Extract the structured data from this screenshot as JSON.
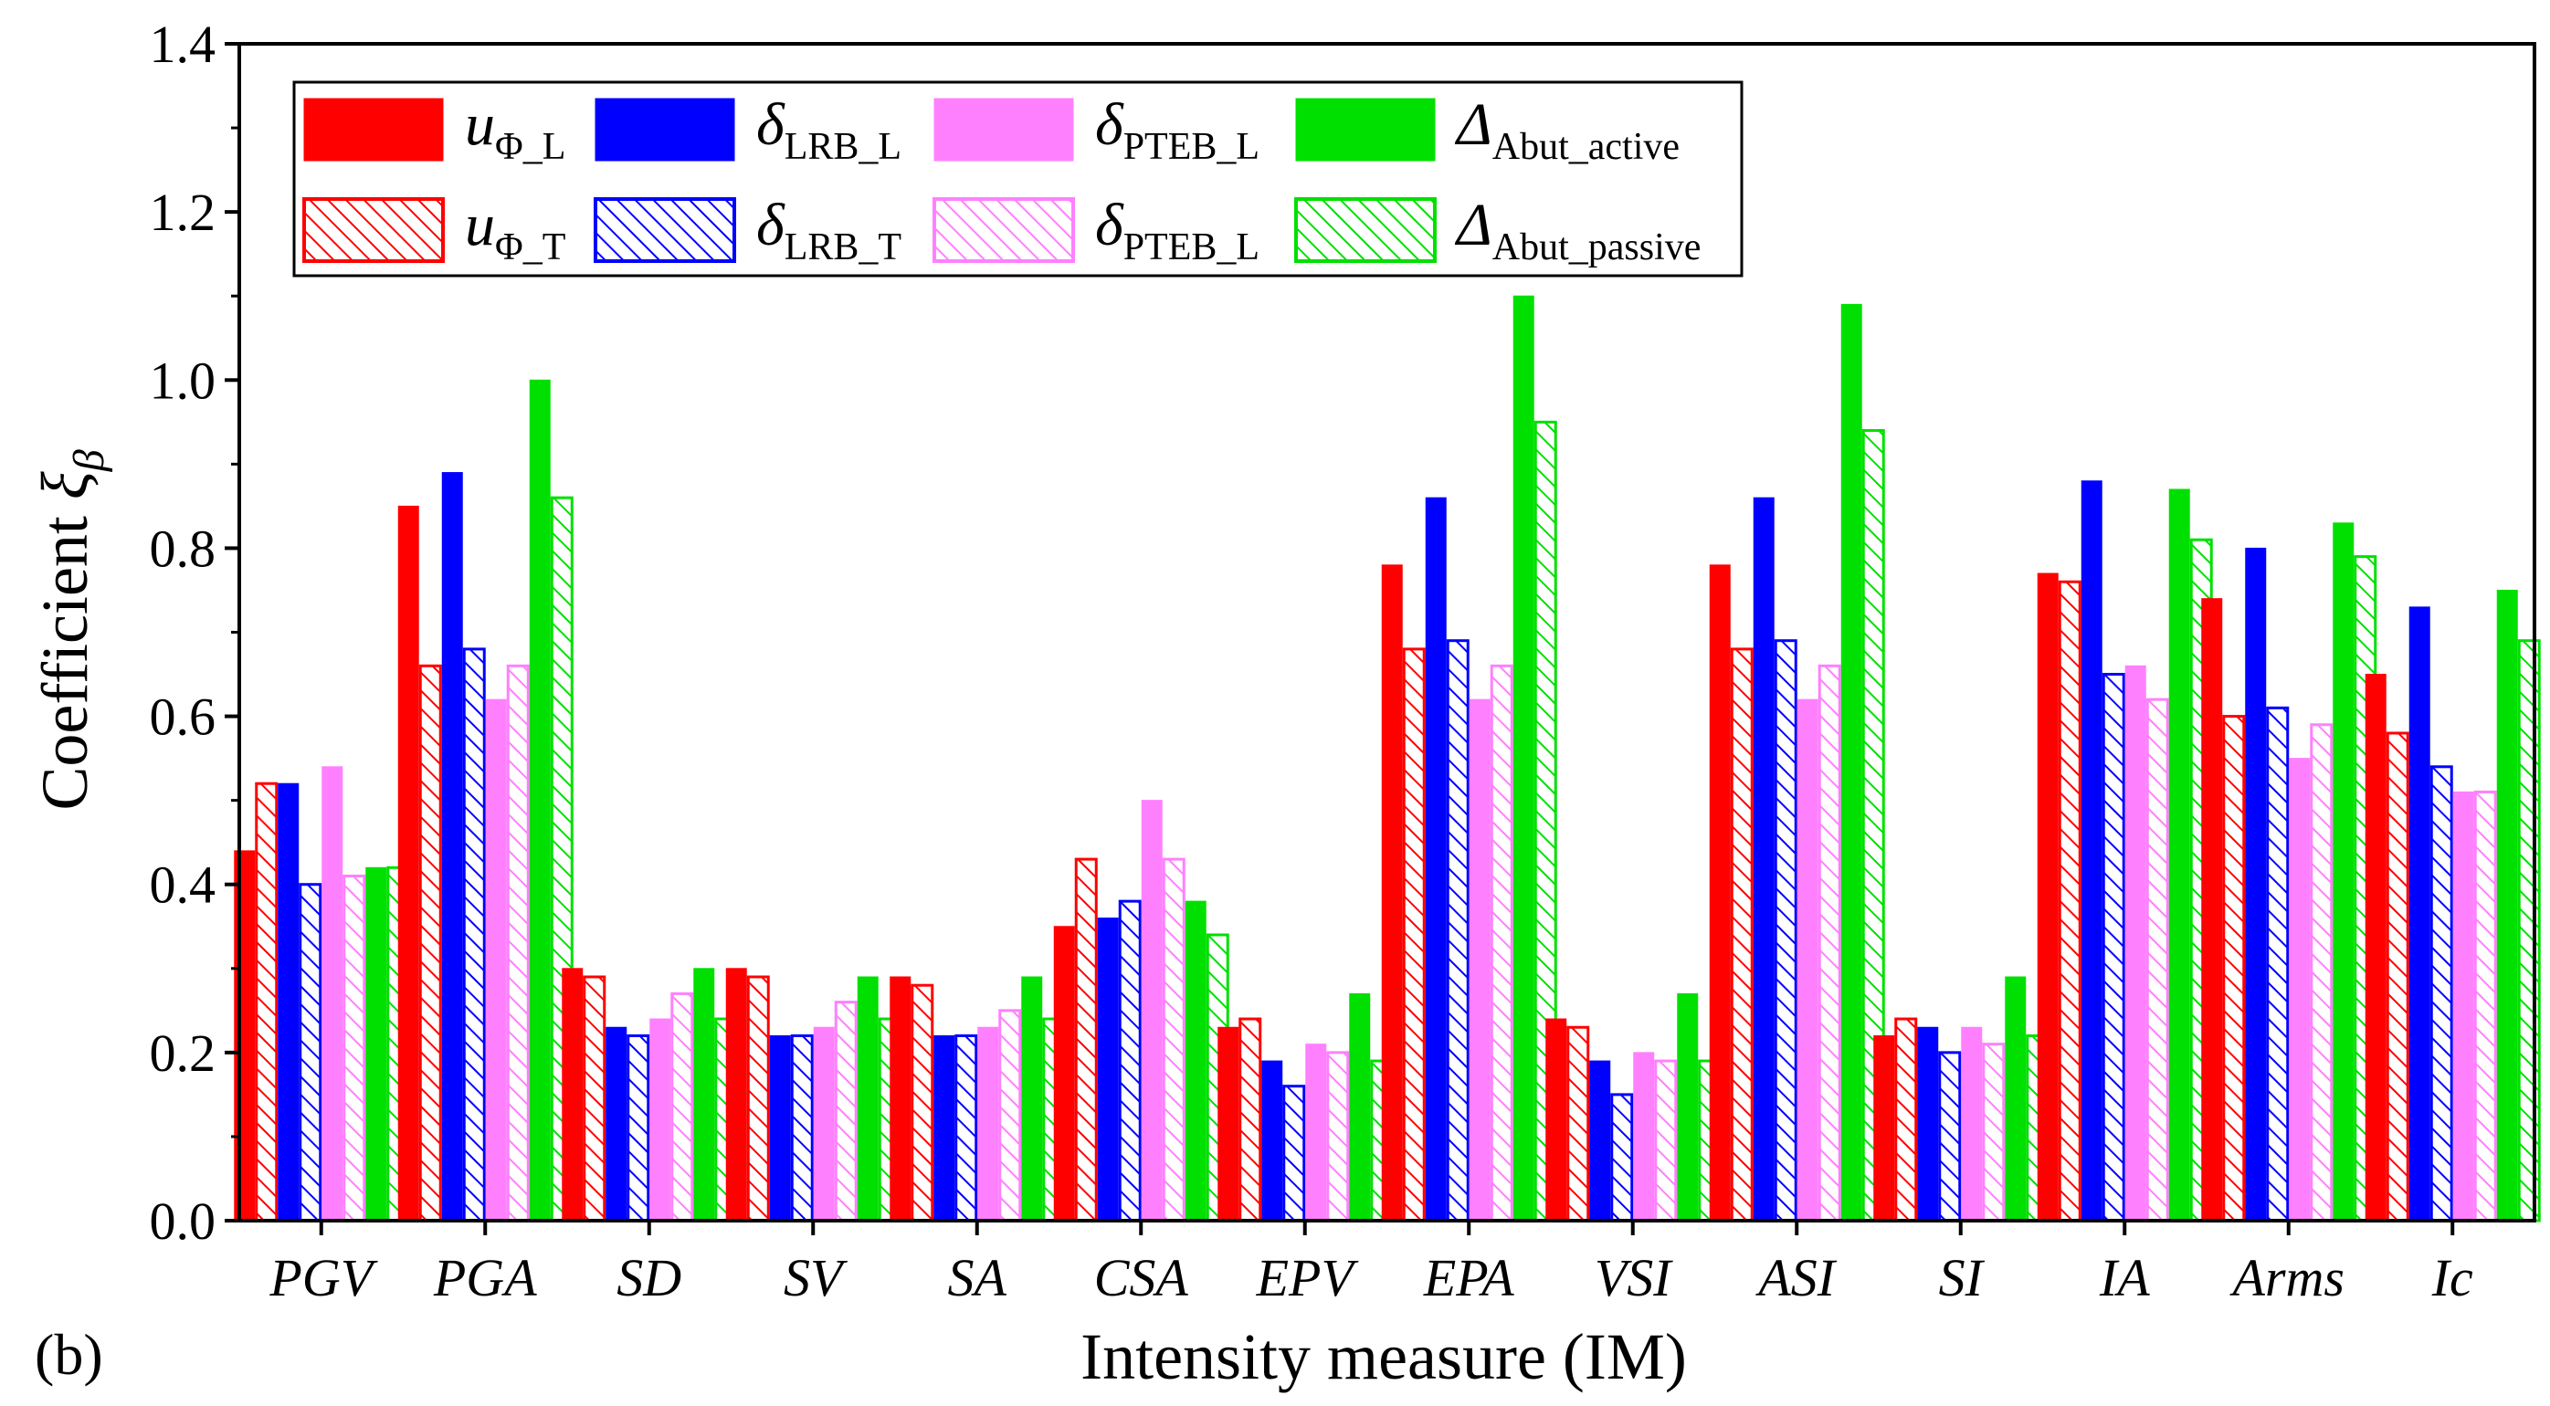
{
  "figure_label": "(b)",
  "chart_data": {
    "type": "bar",
    "xlabel": "Intensity measure (IM)",
    "ylabel": "Coefficient ξβ",
    "ylabel_prefix": "Coefficient ",
    "ylabel_symbol": "ξ",
    "ylabel_subscript": "β",
    "ylim": [
      0,
      1.4
    ],
    "yticks": [
      "0.0",
      "0.2",
      "0.4",
      "0.6",
      "0.8",
      "1.0",
      "1.2",
      "1.4"
    ],
    "ytick_values": [
      0,
      0.2,
      0.4,
      0.6,
      0.8,
      1.0,
      1.2,
      1.4
    ],
    "categories": [
      "PGV",
      "PGA",
      "SD",
      "SV",
      "SA",
      "CSA",
      "EPV",
      "EPA",
      "VSI",
      "ASI",
      "SI",
      "IA",
      "Arms",
      "Ic"
    ],
    "legend_position": "top-left",
    "series": [
      {
        "name": "uΦ_L",
        "main": "u",
        "sub": "Φ_L",
        "color": "#ff0000",
        "hatched": false,
        "values": [
          0.44,
          0.85,
          0.3,
          0.3,
          0.29,
          0.35,
          0.23,
          0.78,
          0.24,
          0.78,
          0.22,
          0.77,
          0.74,
          0.65
        ]
      },
      {
        "name": "uΦ_T",
        "main": "u",
        "sub": "Φ_T",
        "color": "#ff0000",
        "hatched": true,
        "values": [
          0.52,
          0.66,
          0.29,
          0.29,
          0.28,
          0.43,
          0.24,
          0.68,
          0.23,
          0.68,
          0.24,
          0.76,
          0.6,
          0.58
        ]
      },
      {
        "name": "δLRB_L",
        "main": "δ",
        "sub": "LRB_L",
        "color": "#0000ff",
        "hatched": false,
        "values": [
          0.52,
          0.89,
          0.23,
          0.22,
          0.22,
          0.36,
          0.19,
          0.86,
          0.19,
          0.86,
          0.23,
          0.88,
          0.8,
          0.73
        ]
      },
      {
        "name": "δLRB_T",
        "main": "δ",
        "sub": "LRB_T",
        "color": "#0000ff",
        "hatched": true,
        "values": [
          0.4,
          0.68,
          0.22,
          0.22,
          0.22,
          0.38,
          0.16,
          0.69,
          0.15,
          0.69,
          0.2,
          0.65,
          0.61,
          0.54
        ]
      },
      {
        "name": "δPTEB_L",
        "main": "δ",
        "sub": "PTEB_L",
        "color": "#ff80ff",
        "hatched": false,
        "values": [
          0.54,
          0.62,
          0.24,
          0.23,
          0.23,
          0.5,
          0.21,
          0.62,
          0.2,
          0.62,
          0.23,
          0.66,
          0.55,
          0.51
        ]
      },
      {
        "name": "δPTEB_L (hatched)",
        "main": "δ",
        "sub": "PTEB_L",
        "color": "#ff80ff",
        "hatched": true,
        "values": [
          0.41,
          0.66,
          0.27,
          0.26,
          0.25,
          0.43,
          0.2,
          0.66,
          0.19,
          0.66,
          0.21,
          0.62,
          0.59,
          0.51
        ]
      },
      {
        "name": "ΔAbut_active",
        "main": "Δ",
        "sub": "Abut_active",
        "color": "#00e000",
        "hatched": false,
        "values": [
          0.42,
          1.0,
          0.3,
          0.29,
          0.29,
          0.38,
          0.27,
          1.1,
          0.27,
          1.09,
          0.29,
          0.87,
          0.83,
          0.75
        ]
      },
      {
        "name": "ΔAbut_passive",
        "main": "Δ",
        "sub": "Abut_passive",
        "color": "#00e000",
        "hatched": true,
        "values": [
          0.42,
          0.86,
          0.24,
          0.24,
          0.24,
          0.34,
          0.19,
          0.95,
          0.19,
          0.94,
          0.22,
          0.81,
          0.79,
          0.69
        ]
      }
    ]
  }
}
